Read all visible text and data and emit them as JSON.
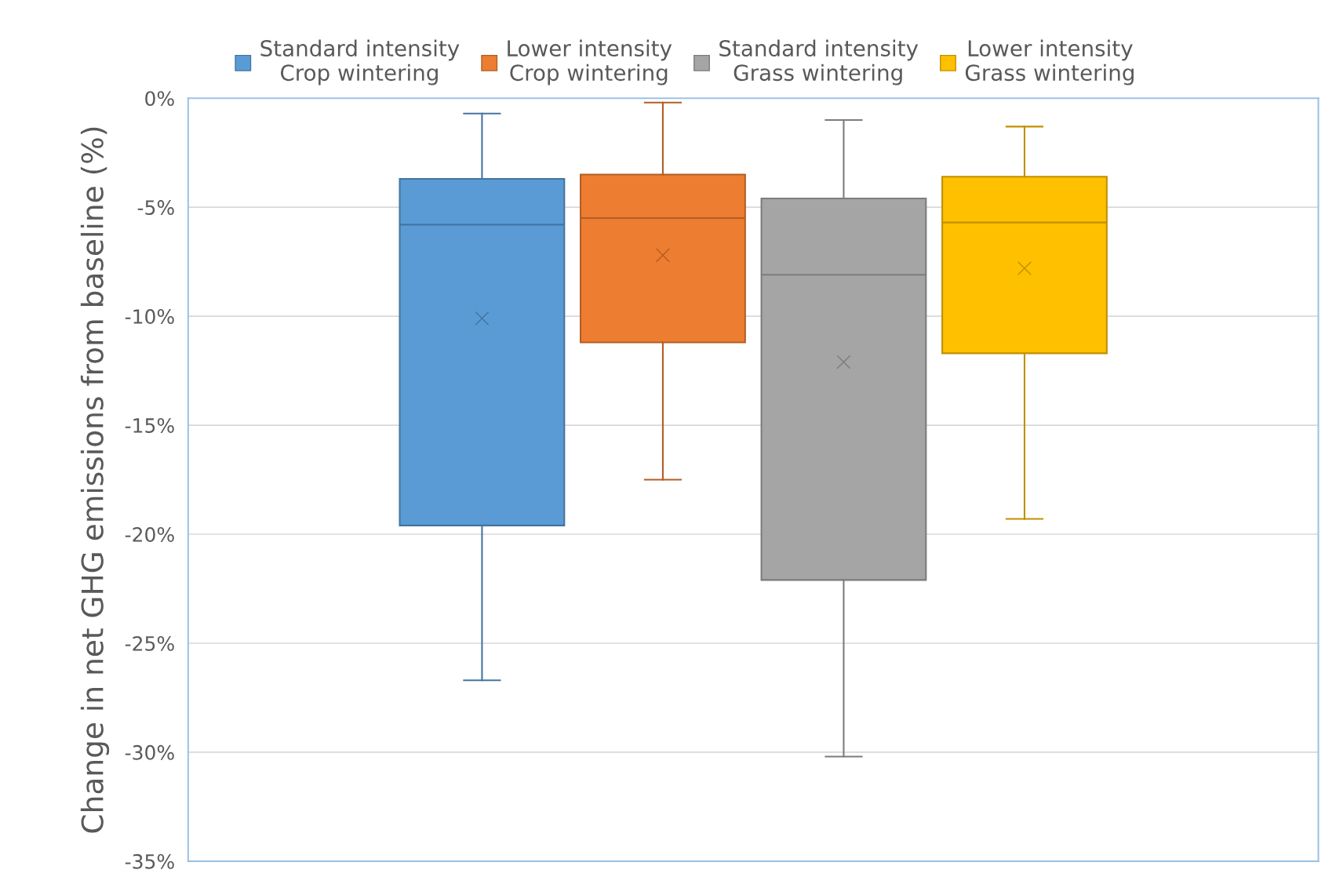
{
  "chart_data": {
    "type": "box",
    "ylabel": "Change in net GHG emissions from baseline (%)",
    "categories": [
      null
    ],
    "series": [
      {
        "name": "Standard intensity\nCrop wintering",
        "color": "#5b9bd5",
        "boxes": [
          {
            "low": -26.7,
            "q1": -19.6,
            "median": -5.8,
            "q3": -3.7,
            "high": -0.7,
            "mean": -10.1
          }
        ]
      },
      {
        "name": "Lower intensity\nCrop wintering",
        "color": "#ed7d31",
        "boxes": [
          {
            "low": -17.5,
            "q1": -11.2,
            "median": -5.5,
            "q3": -3.5,
            "high": -0.2,
            "mean": -7.2
          }
        ]
      },
      {
        "name": "Standard intensity\nGrass wintering",
        "color": "#a5a5a5",
        "boxes": [
          {
            "low": -30.2,
            "q1": -22.1,
            "median": -8.1,
            "q3": -4.6,
            "high": -1.0,
            "mean": -12.1
          }
        ]
      },
      {
        "name": "Lower intensity\nGrass wintering",
        "color": "#ffc000",
        "boxes": [
          {
            "low": -19.3,
            "q1": -11.7,
            "median": -5.7,
            "q3": -3.6,
            "high": -1.3,
            "mean": -7.8
          }
        ]
      }
    ],
    "ylim": [
      -35,
      0
    ],
    "yticks": [
      {
        "value": 0,
        "label": "0%"
      },
      {
        "value": -5,
        "label": "-5%"
      },
      {
        "value": -10,
        "label": "-10%"
      },
      {
        "value": -15,
        "label": "-15%"
      },
      {
        "value": -20,
        "label": "-20%"
      },
      {
        "value": -25,
        "label": "-25%"
      },
      {
        "value": -30,
        "label": "-30%"
      },
      {
        "value": -35,
        "label": "-35%"
      }
    ],
    "grid": "y",
    "legend": "top",
    "marker": "cross"
  }
}
